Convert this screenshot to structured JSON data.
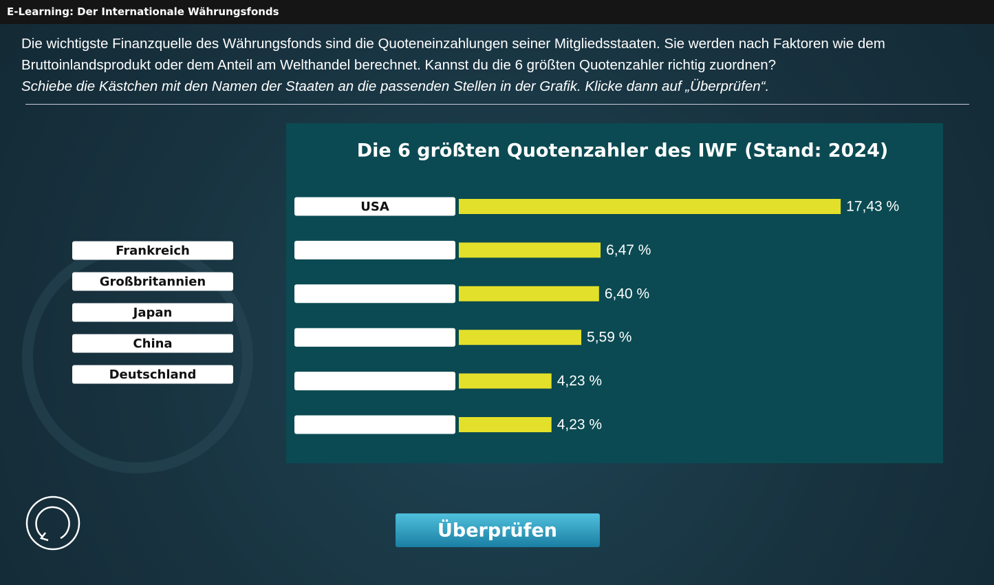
{
  "header": {
    "title": "E-Learning: Der Internationale Währungsfonds"
  },
  "intro": {
    "text": "Die wichtigste Finanzquelle des Währungsfonds sind die Quoteneinzahlungen seiner Mitgliedsstaaten. Sie werden nach Faktoren wie dem Bruttoinlandsprodukt oder dem Anteil am Welthandel berechnet. Kannst du die 6 größten Quotenzahler richtig zuordnen?",
    "instruction": "Schiebe die Kästchen mit den Namen der Staaten an die passenden Stellen in der Grafik. Klicke dann auf „Überprüfen“."
  },
  "draggables": [
    "Frankreich",
    "Großbritannien",
    "Japan",
    "China",
    "Deutschland"
  ],
  "chart_data": {
    "type": "bar",
    "title": "Die 6 größten Quotenzahler des IWF (Stand: 2024)",
    "categories": [
      "USA",
      null,
      null,
      null,
      null,
      null
    ],
    "values": [
      17.43,
      6.47,
      6.4,
      5.59,
      4.23,
      4.23
    ],
    "value_labels": [
      "17,43 %",
      "6,47 %",
      "6,40 %",
      "5,59 %",
      "4,23 %",
      "4,23 %"
    ],
    "color": "#e2e02a"
  },
  "button": {
    "label": "Überprüfen"
  }
}
